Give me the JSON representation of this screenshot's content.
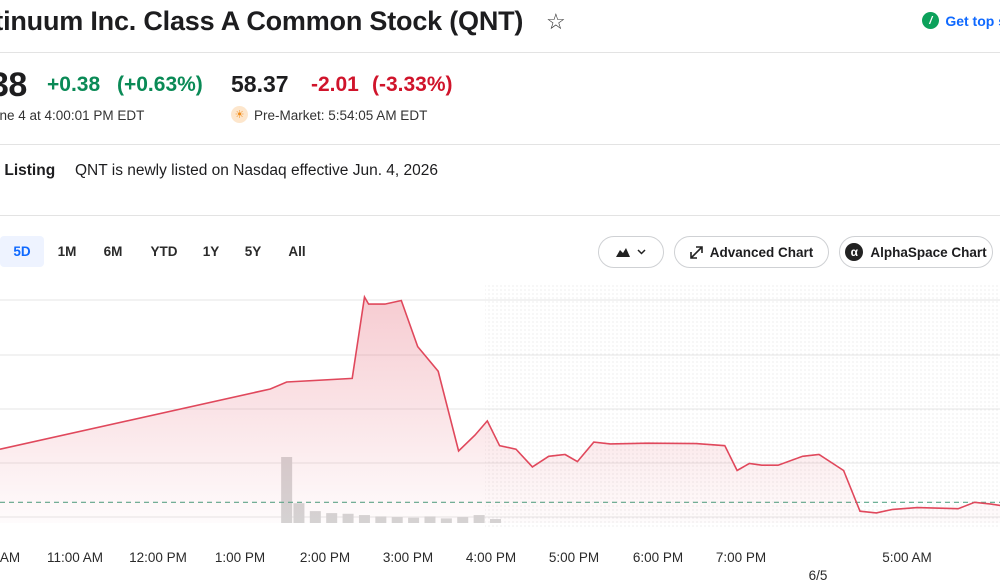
{
  "header": {
    "title": "ntinuum Inc. Class A Common Stock (QNT)",
    "promo_label": "Get top s"
  },
  "quote": {
    "price": "38",
    "change": "+0.38",
    "change_pct": "(+0.63%)",
    "close_time": "une 4 at 4:00:01 PM EDT",
    "premarket_price": "58.37",
    "premarket_change": "-2.01",
    "premarket_change_pct": "(-3.33%)",
    "premarket_time": "Pre-Market: 5:54:05 AM EDT"
  },
  "notice": {
    "label": "w Listing",
    "text": "QNT is newly listed on Nasdaq effective Jun. 4, 2026"
  },
  "ranges": [
    "5D",
    "1M",
    "6M",
    "YTD",
    "1Y",
    "5Y",
    "All"
  ],
  "active_range": "5D",
  "chart_controls": {
    "type_icon": "mountain-chart-icon",
    "advanced_label": "Advanced Chart",
    "alphaspace_label": "AlphaSpace Chart"
  },
  "colors": {
    "up": "#0a8a56",
    "down": "#d0142b",
    "line": "#e0485c",
    "baseline": "#5aa88a"
  },
  "chart_data": {
    "type": "area",
    "x_tick_labels": [
      "AM",
      "11:00 AM",
      "12:00 PM",
      "1:00 PM",
      "2:00 PM",
      "3:00 PM",
      "4:00 PM",
      "5:00 PM",
      "6:00 PM",
      "7:00 PM",
      "6/5",
      "5:00 AM"
    ],
    "series": [
      {
        "values": [
          [
            10.0,
            59.9
          ],
          [
            13.3,
            61.6
          ],
          [
            13.5,
            61.8
          ],
          [
            14.3,
            61.9
          ],
          [
            14.45,
            64.2
          ],
          [
            14.5,
            64.0
          ],
          [
            14.7,
            64.0
          ],
          [
            14.9,
            64.1
          ],
          [
            15.1,
            62.8
          ],
          [
            15.35,
            62.1
          ],
          [
            15.6,
            59.85
          ],
          [
            15.8,
            60.3
          ],
          [
            15.95,
            60.7
          ],
          [
            16.1,
            60.0
          ],
          [
            16.3,
            59.9
          ],
          [
            16.5,
            59.4
          ],
          [
            16.7,
            59.7
          ],
          [
            16.9,
            59.75
          ],
          [
            17.05,
            59.55
          ],
          [
            17.25,
            60.1
          ],
          [
            17.45,
            60.05
          ],
          [
            17.9,
            60.07
          ],
          [
            18.5,
            60.06
          ],
          [
            18.85,
            60.0
          ],
          [
            19.0,
            59.3
          ],
          [
            19.15,
            59.5
          ],
          [
            19.3,
            59.45
          ],
          [
            19.5,
            59.45
          ],
          [
            19.8,
            59.7
          ],
          [
            20.0,
            59.75
          ],
          [
            20.3,
            59.3
          ],
          [
            20.5,
            58.15
          ],
          [
            20.7,
            58.1
          ],
          [
            20.9,
            58.2
          ],
          [
            21.2,
            58.25
          ],
          [
            21.7,
            58.22
          ],
          [
            21.9,
            58.4
          ],
          [
            22.1,
            58.35
          ],
          [
            22.3,
            58.28
          ],
          [
            22.5,
            58.45
          ],
          [
            22.75,
            58.37
          ]
        ]
      },
      {
        "type": "bar",
        "name": "volume",
        "values": [
          [
            13.5,
            100
          ],
          [
            13.65,
            30
          ],
          [
            13.85,
            18
          ],
          [
            14.05,
            15
          ],
          [
            14.25,
            14
          ],
          [
            14.45,
            12
          ],
          [
            14.65,
            10
          ],
          [
            14.85,
            9
          ],
          [
            15.05,
            8
          ],
          [
            15.25,
            10
          ],
          [
            15.45,
            7
          ],
          [
            15.65,
            9
          ],
          [
            15.85,
            12
          ],
          [
            16.05,
            6
          ]
        ]
      }
    ],
    "baseline": 58.4,
    "last_point": 58.37,
    "grid": true,
    "extended_hours_shaded": true
  }
}
